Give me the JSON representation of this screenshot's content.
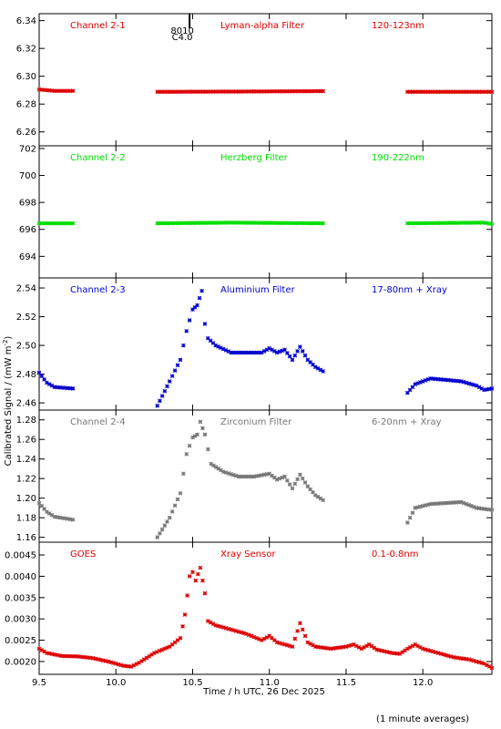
{
  "chart_data": {
    "type": "scatter",
    "marker": "asterisk",
    "xlabel": "Time / h UTC, 26 Dec 2025",
    "ylabel": "Calibrated Signal / (mW m",
    "ylabel_sup": "-2",
    "ylabel_tail": ")",
    "xlim": [
      9.5,
      12.45
    ],
    "xticks": [
      9.5,
      10.0,
      10.5,
      11.0,
      11.5,
      12.0
    ],
    "xtick_labels": [
      "9.5",
      "10.0",
      "10.5",
      "11.0",
      "11.5",
      "12.0"
    ],
    "footnote": "(1 minute averages)",
    "flare_marker": {
      "x": 10.48,
      "labels": [
        "8010",
        "C4.0"
      ]
    },
    "panels": [
      {
        "name": "Channel 2-1",
        "filter": "Lyman-alpha Filter",
        "band": "120-123nm",
        "color": "#dd0000",
        "ylim": [
          6.25,
          6.345
        ],
        "yticks": [
          6.26,
          6.28,
          6.3,
          6.32,
          6.34
        ],
        "ytick_labels": [
          "6.26",
          "6.28",
          "6.30",
          "6.32",
          "6.34"
        ],
        "segments": [
          [
            [
              9.5,
              6.2905
            ],
            [
              9.6,
              6.2895
            ],
            [
              9.72,
              6.2895
            ]
          ],
          [
            [
              10.27,
              6.2888
            ],
            [
              10.8,
              6.289
            ],
            [
              11.35,
              6.2893
            ]
          ],
          [
            [
              11.9,
              6.2888
            ],
            [
              12.45,
              6.2888
            ]
          ]
        ]
      },
      {
        "name": "Channel 2-2",
        "filter": "Herzberg Filter",
        "band": "190-222nm",
        "color": "#00dd00",
        "ylim": [
          692.4,
          702.2
        ],
        "yticks": [
          694,
          696,
          698,
          700,
          702
        ],
        "ytick_labels": [
          "694",
          "696",
          "698",
          "700",
          "702"
        ],
        "segments": [
          [
            [
              9.5,
              696.45
            ],
            [
              9.72,
              696.45
            ]
          ],
          [
            [
              10.27,
              696.45
            ],
            [
              10.75,
              696.5
            ],
            [
              11.35,
              696.45
            ]
          ],
          [
            [
              11.9,
              696.45
            ],
            [
              12.4,
              696.5
            ],
            [
              12.45,
              696.4
            ]
          ]
        ]
      },
      {
        "name": "Channel 2-3",
        "filter": "Aluminium Filter",
        "band": "17-80nm + Xray",
        "color": "#0000cc",
        "ylim": [
          2.455,
          2.547
        ],
        "yticks": [
          2.46,
          2.48,
          2.5,
          2.52,
          2.54
        ],
        "ytick_labels": [
          "2.46",
          "2.48",
          "2.50",
          "2.52",
          "2.54"
        ],
        "segments": [
          [
            [
              9.5,
              2.481
            ],
            [
              9.55,
              2.474
            ],
            [
              9.6,
              2.471
            ],
            [
              9.72,
              2.47
            ]
          ],
          [
            [
              10.27,
              2.458
            ],
            [
              10.35,
              2.475
            ],
            [
              10.42,
              2.49
            ],
            [
              10.46,
              2.51
            ],
            [
              10.5,
              2.525
            ],
            [
              10.53,
              2.528
            ],
            [
              10.56,
              2.538
            ],
            [
              10.58,
              2.515
            ],
            [
              10.6,
              2.505
            ],
            [
              10.65,
              2.5
            ],
            [
              10.75,
              2.495
            ],
            [
              10.85,
              2.495
            ],
            [
              10.95,
              2.495
            ],
            [
              11.0,
              2.498
            ],
            [
              11.05,
              2.495
            ],
            [
              11.1,
              2.497
            ],
            [
              11.15,
              2.49
            ],
            [
              11.2,
              2.499
            ],
            [
              11.25,
              2.49
            ],
            [
              11.3,
              2.485
            ],
            [
              11.35,
              2.482
            ]
          ],
          [
            [
              11.9,
              2.467
            ],
            [
              11.95,
              2.473
            ],
            [
              12.05,
              2.477
            ],
            [
              12.15,
              2.476
            ],
            [
              12.25,
              2.475
            ],
            [
              12.35,
              2.472
            ],
            [
              12.4,
              2.469
            ],
            [
              12.45,
              2.47
            ]
          ]
        ]
      },
      {
        "name": "Channel 2-4",
        "filter": "Zirconium Filter",
        "band": "6-20nm + Xray",
        "color": "#777777",
        "ylim": [
          1.155,
          1.29
        ],
        "yticks": [
          1.16,
          1.18,
          1.2,
          1.22,
          1.24,
          1.26,
          1.28
        ],
        "ytick_labels": [
          "1.16",
          "1.18",
          "1.20",
          "1.22",
          "1.24",
          "1.26",
          "1.28"
        ],
        "segments": [
          [
            [
              9.5,
              1.195
            ],
            [
              9.55,
              1.186
            ],
            [
              9.6,
              1.181
            ],
            [
              9.72,
              1.178
            ]
          ],
          [
            [
              10.27,
              1.16
            ],
            [
              10.35,
              1.18
            ],
            [
              10.42,
              1.205
            ],
            [
              10.46,
              1.245
            ],
            [
              10.5,
              1.262
            ],
            [
              10.53,
              1.265
            ],
            [
              10.55,
              1.278
            ],
            [
              10.58,
              1.265
            ],
            [
              10.62,
              1.235
            ],
            [
              10.7,
              1.227
            ],
            [
              10.8,
              1.222
            ],
            [
              10.9,
              1.222
            ],
            [
              11.0,
              1.225
            ],
            [
              11.05,
              1.219
            ],
            [
              11.1,
              1.222
            ],
            [
              11.15,
              1.21
            ],
            [
              11.2,
              1.224
            ],
            [
              11.25,
              1.212
            ],
            [
              11.3,
              1.203
            ],
            [
              11.35,
              1.198
            ]
          ],
          [
            [
              11.9,
              1.175
            ],
            [
              11.95,
              1.19
            ],
            [
              12.05,
              1.194
            ],
            [
              12.15,
              1.195
            ],
            [
              12.25,
              1.196
            ],
            [
              12.35,
              1.19
            ],
            [
              12.45,
              1.188
            ]
          ]
        ]
      },
      {
        "name": "GOES",
        "filter": "Xray Sensor",
        "band": "0.1-0.8nm",
        "color": "#dd0000",
        "ylim": [
          0.0017,
          0.0048
        ],
        "yticks": [
          0.002,
          0.0025,
          0.003,
          0.0035,
          0.004,
          0.0045
        ],
        "ytick_labels": [
          "0.0020",
          "0.0025",
          "0.0030",
          "0.0035",
          "0.0040",
          "0.0045"
        ],
        "segments": [
          [
            [
              9.5,
              0.0023
            ],
            [
              9.55,
              0.0022
            ],
            [
              9.65,
              0.00213
            ],
            [
              9.75,
              0.00212
            ],
            [
              9.85,
              0.00208
            ],
            [
              9.95,
              0.002
            ],
            [
              10.05,
              0.0019
            ],
            [
              10.1,
              0.00188
            ],
            [
              10.15,
              0.00197
            ],
            [
              10.25,
              0.0022
            ],
            [
              10.35,
              0.00235
            ],
            [
              10.42,
              0.00255
            ],
            [
              10.45,
              0.0031
            ],
            [
              10.48,
              0.004
            ],
            [
              10.5,
              0.0041
            ],
            [
              10.52,
              0.0039
            ],
            [
              10.55,
              0.0042
            ],
            [
              10.58,
              0.0036
            ],
            [
              10.6,
              0.00295
            ],
            [
              10.65,
              0.00285
            ],
            [
              10.75,
              0.00275
            ],
            [
              10.85,
              0.00265
            ],
            [
              10.95,
              0.0025
            ],
            [
              11.0,
              0.0026
            ],
            [
              11.05,
              0.00245
            ],
            [
              11.1,
              0.0024
            ],
            [
              11.15,
              0.00235
            ],
            [
              11.2,
              0.0029
            ],
            [
              11.25,
              0.00245
            ],
            [
              11.3,
              0.00235
            ],
            [
              11.4,
              0.0023
            ],
            [
              11.5,
              0.00235
            ],
            [
              11.55,
              0.0024
            ],
            [
              11.6,
              0.0023
            ],
            [
              11.65,
              0.0024
            ],
            [
              11.7,
              0.00228
            ],
            [
              11.8,
              0.0022
            ],
            [
              11.85,
              0.00218
            ],
            [
              11.9,
              0.0023
            ],
            [
              11.95,
              0.0024
            ],
            [
              12.0,
              0.0023
            ],
            [
              12.1,
              0.0022
            ],
            [
              12.2,
              0.0021
            ],
            [
              12.3,
              0.00205
            ],
            [
              12.4,
              0.00195
            ],
            [
              12.45,
              0.00185
            ]
          ]
        ]
      }
    ]
  }
}
